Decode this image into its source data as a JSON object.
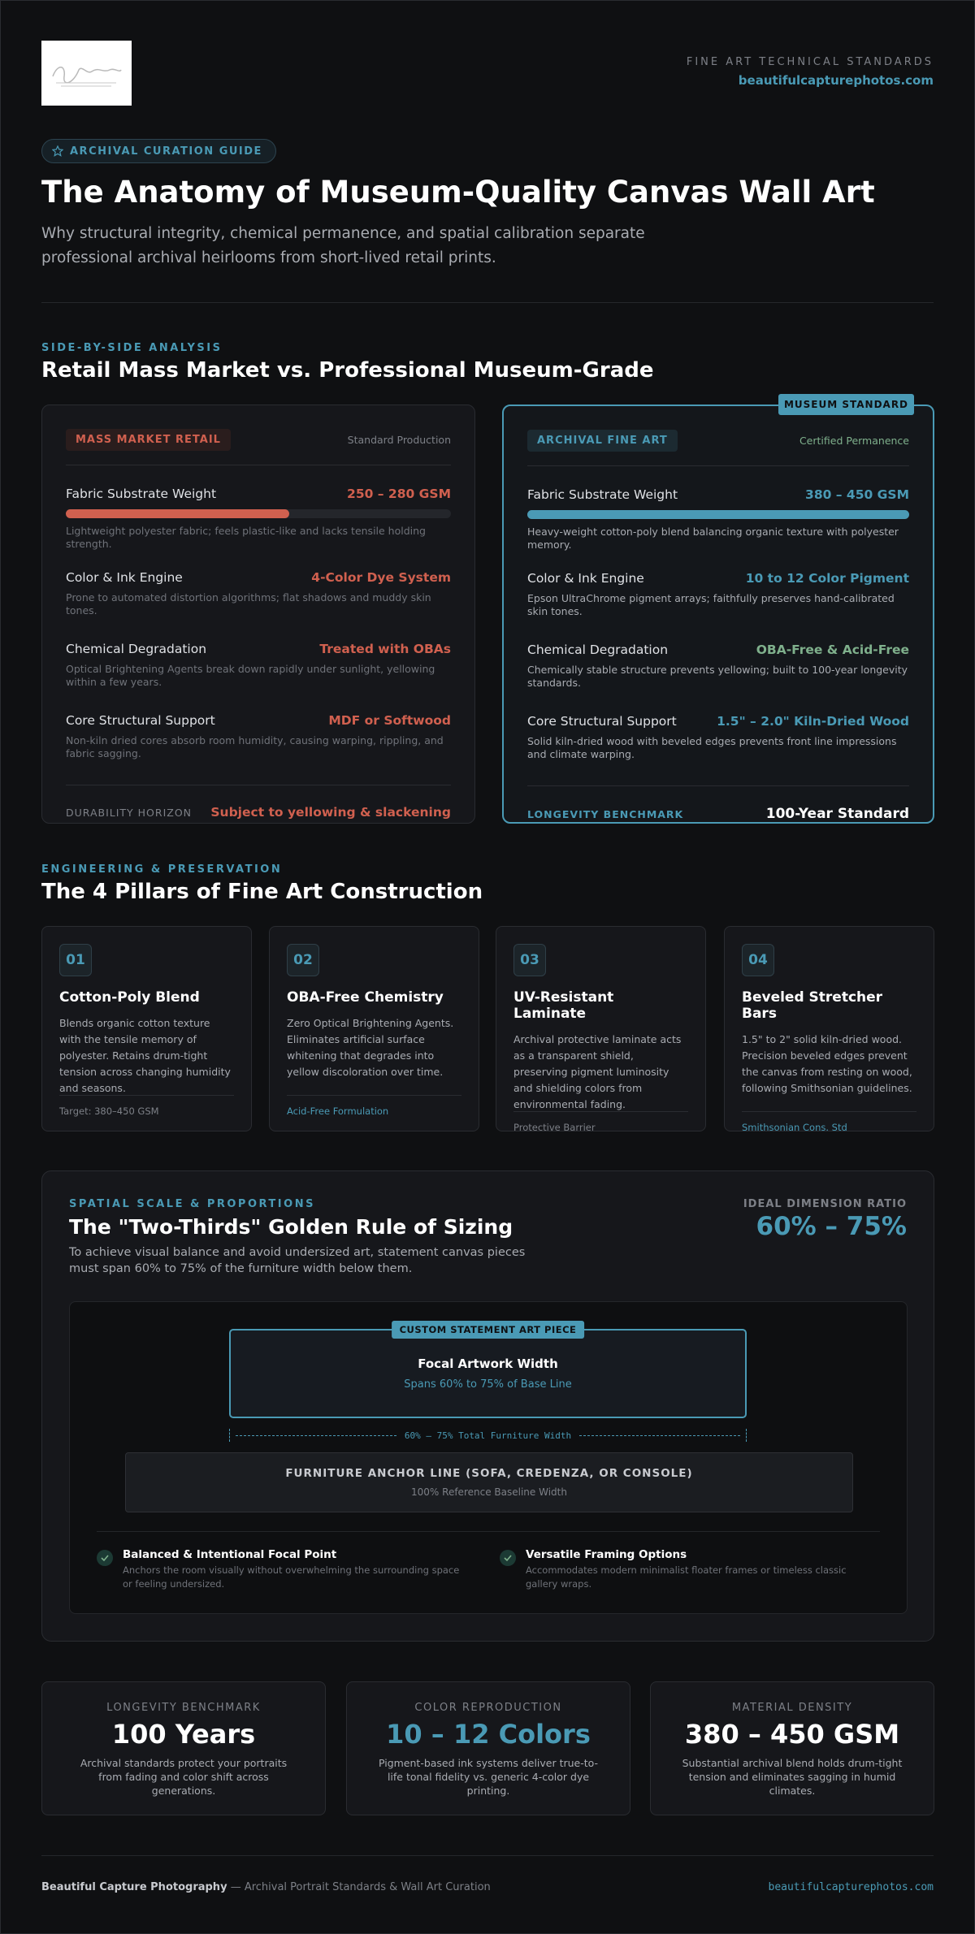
{
  "header": {
    "kicker": "FINE ART TECHNICAL STANDARDS",
    "url": "beautifulcapturephotos.com"
  },
  "hero": {
    "badge": "ARCHIVAL CURATION GUIDE",
    "title": "The Anatomy of Museum-Quality Canvas Wall Art",
    "subtitle": "Why structural integrity, chemical permanence, and spatial calibration separate professional archival heirlooms from short-lived retail prints."
  },
  "comparison": {
    "label": "SIDE-BY-SIDE ANALYSIS",
    "title": "Retail Mass Market vs. Professional Museum-Grade",
    "retail": {
      "tag": "MASS MARKET RETAIL",
      "note": "Standard Production",
      "rows": [
        {
          "name": "Fabric Substrate Weight",
          "value": "250 – 280 GSM",
          "desc": "Lightweight polyester fabric; feels plastic-like and lacks tensile holding strength."
        },
        {
          "name": "Color & Ink Engine",
          "value": "4-Color Dye System",
          "desc": "Prone to automated distortion algorithms; flat shadows and muddy skin tones."
        },
        {
          "name": "Chemical Degradation",
          "value": "Treated with OBAs",
          "desc": "Optical Brightening Agents break down rapidly under sunlight, yellowing within a few years."
        },
        {
          "name": "Core Structural Support",
          "value": "MDF or Softwood",
          "desc": "Non-kiln dried cores absorb room humidity, causing warping, rippling, and fabric sagging."
        }
      ],
      "footer_label": "DURABILITY HORIZON",
      "footer_value": "Subject to yellowing & slackening"
    },
    "museum": {
      "ribbon": "MUSEUM STANDARD",
      "tag": "ARCHIVAL FINE ART",
      "note": "Certified Permanence",
      "rows": [
        {
          "name": "Fabric Substrate Weight",
          "value": "380 – 450 GSM",
          "desc": "Heavy-weight cotton-poly blend balancing organic texture with polyester memory."
        },
        {
          "name": "Color & Ink Engine",
          "value": "10 to 12 Color Pigment",
          "desc": "Epson UltraChrome pigment arrays; faithfully preserves hand-calibrated skin tones."
        },
        {
          "name": "Chemical Degradation",
          "value": "OBA-Free & Acid-Free",
          "desc": "Chemically stable structure prevents yellowing; built to 100-year longevity standards."
        },
        {
          "name": "Core Structural Support",
          "value": "1.5\" – 2.0\" Kiln-Dried Wood",
          "desc": "Solid kiln-dried wood with beveled edges prevents front line impressions and climate warping."
        }
      ],
      "footer_label": "LONGEVITY BENCHMARK",
      "footer_value": "100-Year Standard"
    }
  },
  "pillars": {
    "label": "ENGINEERING & PRESERVATION",
    "title": "The 4 Pillars of Fine Art Construction",
    "items": [
      {
        "num": "01",
        "title": "Cotton-Poly Blend",
        "desc": "Blends organic cotton texture with the tensile memory of polyester. Retains drum-tight tension across changing humidity and seasons.",
        "footer": "Target: 380–450 GSM"
      },
      {
        "num": "02",
        "title": "OBA-Free Chemistry",
        "desc": "Zero Optical Brightening Agents. Eliminates artificial surface whitening that degrades into yellow discoloration over time.",
        "footer": "Acid-Free Formulation"
      },
      {
        "num": "03",
        "title": "UV-Resistant Laminate",
        "desc": "Archival protective laminate acts as a transparent shield, preserving pigment luminosity and shielding colors from environmental fading.",
        "footer": "Protective Barrier"
      },
      {
        "num": "04",
        "title": "Beveled Stretcher Bars",
        "desc": "1.5\" to 2\" solid kiln-dried wood. Precision beveled edges prevent the canvas from resting on wood, following Smithsonian guidelines.",
        "footer": "Smithsonian Cons. Std"
      }
    ]
  },
  "spatial": {
    "label": "SPATIAL SCALE & PROPORTIONS",
    "title": "The \"Two-Thirds\" Golden Rule of Sizing",
    "desc": "To achieve visual balance and avoid undersized art, statement canvas pieces must span 60% to 75% of the furniture width below them.",
    "ratio_label": "IDEAL DIMENSION RATIO",
    "ratio_value": "60% – 75%",
    "art_tag": "CUSTOM STATEMENT ART PIECE",
    "art_title": "Focal Artwork Width",
    "art_sub": "Spans 60% to 75% of Base Line",
    "measure": "60% – 75% Total Furniture Width",
    "furniture_title": "FURNITURE ANCHOR LINE (SOFA, CREDENZA, OR CONSOLE)",
    "furniture_sub": "100% Reference Baseline Width",
    "points": [
      {
        "title": "Balanced & Intentional Focal Point",
        "desc": "Anchors the room visually without overwhelming the surrounding space or feeling undersized."
      },
      {
        "title": "Versatile Framing Options",
        "desc": "Accommodates modern minimalist floater frames or timeless classic gallery wraps."
      }
    ]
  },
  "stats": [
    {
      "label": "LONGEVITY BENCHMARK",
      "value": "100 Years",
      "desc": "Archival standards protect your portraits from fading and color shift across generations."
    },
    {
      "label": "COLOR REPRODUCTION",
      "value": "10 – 12 Colors",
      "desc": "Pigment-based ink systems deliver true-to-life tonal fidelity vs. generic 4-color dye printing."
    },
    {
      "label": "MATERIAL DENSITY",
      "value": "380 – 450 GSM",
      "desc": "Substantial archival blend holds drum-tight tension and eliminates sagging in humid climates."
    }
  ],
  "footer": {
    "brand": "Beautiful Capture Photography",
    "tagline": "— Archival Portrait Standards & Wall Art Curation",
    "url": "beautifulcapturephotos.com"
  }
}
